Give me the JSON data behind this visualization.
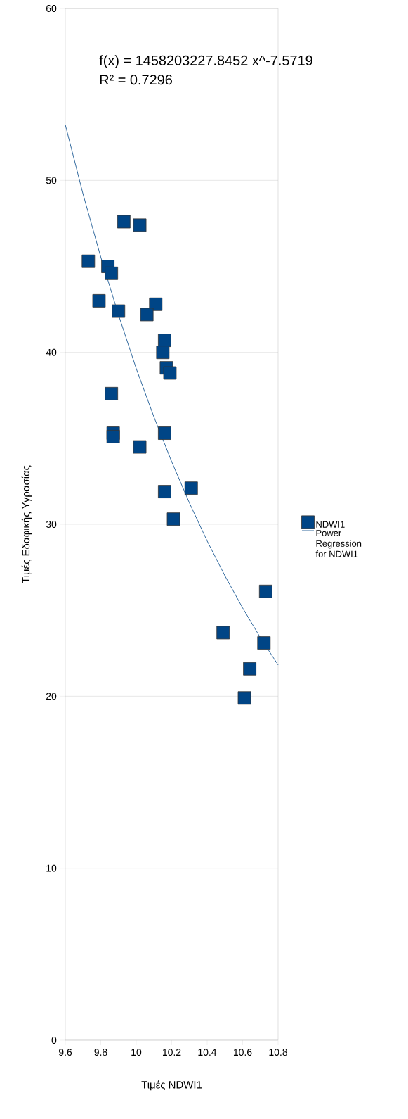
{
  "chart_data": {
    "type": "line",
    "xlabel": "Τιμές NDWI1",
    "ylabel": "Τιμές Εδαφικής  Υγρασίας",
    "annotations": [
      "f(x) = 1458203227.8452 x^-7.5719",
      "R² = 0.7296"
    ],
    "xlim": [
      9.6,
      10.8
    ],
    "xticks": [
      9.6,
      9.8,
      10,
      10.2,
      10.4,
      10.6,
      10.8
    ],
    "ylim": [
      0,
      60
    ],
    "yticks": [
      0,
      10,
      20,
      30,
      40,
      50,
      60
    ],
    "grid": "y",
    "legend": "right",
    "marker": "square",
    "series": [
      {
        "name": "NDWI1",
        "color": "#004586",
        "type": "scatter",
        "x": [
          9.73,
          9.84,
          9.86,
          9.93,
          10.02,
          9.79,
          9.9,
          10.11,
          10.06,
          10.16,
          10.15,
          10.17,
          10.19,
          9.86,
          9.87,
          9.87,
          10.16,
          10.02,
          10.16,
          10.31,
          10.21,
          10.73,
          10.49,
          10.72,
          10.64,
          10.61
        ],
        "values": [
          45.3,
          45.0,
          44.6,
          47.6,
          47.4,
          43.0,
          42.4,
          42.8,
          42.2,
          40.7,
          40.0,
          39.1,
          38.8,
          37.6,
          35.3,
          35.1,
          35.3,
          34.5,
          31.9,
          32.1,
          30.3,
          26.1,
          23.7,
          23.1,
          21.6,
          19.9
        ]
      },
      {
        "name": "Power Regression for NDWI1",
        "color": "#004586",
        "marker": "none",
        "x": [
          9.6,
          9.7,
          9.8,
          9.9,
          10.0,
          10.1,
          10.2,
          10.3,
          10.4,
          10.5,
          10.6,
          10.7,
          10.8
        ],
        "values": [
          53.24,
          49.21,
          45.55,
          42.18,
          39.06,
          36.24,
          33.64,
          31.24,
          29.03,
          27.01,
          25.14,
          23.41,
          21.82
        ]
      }
    ]
  }
}
